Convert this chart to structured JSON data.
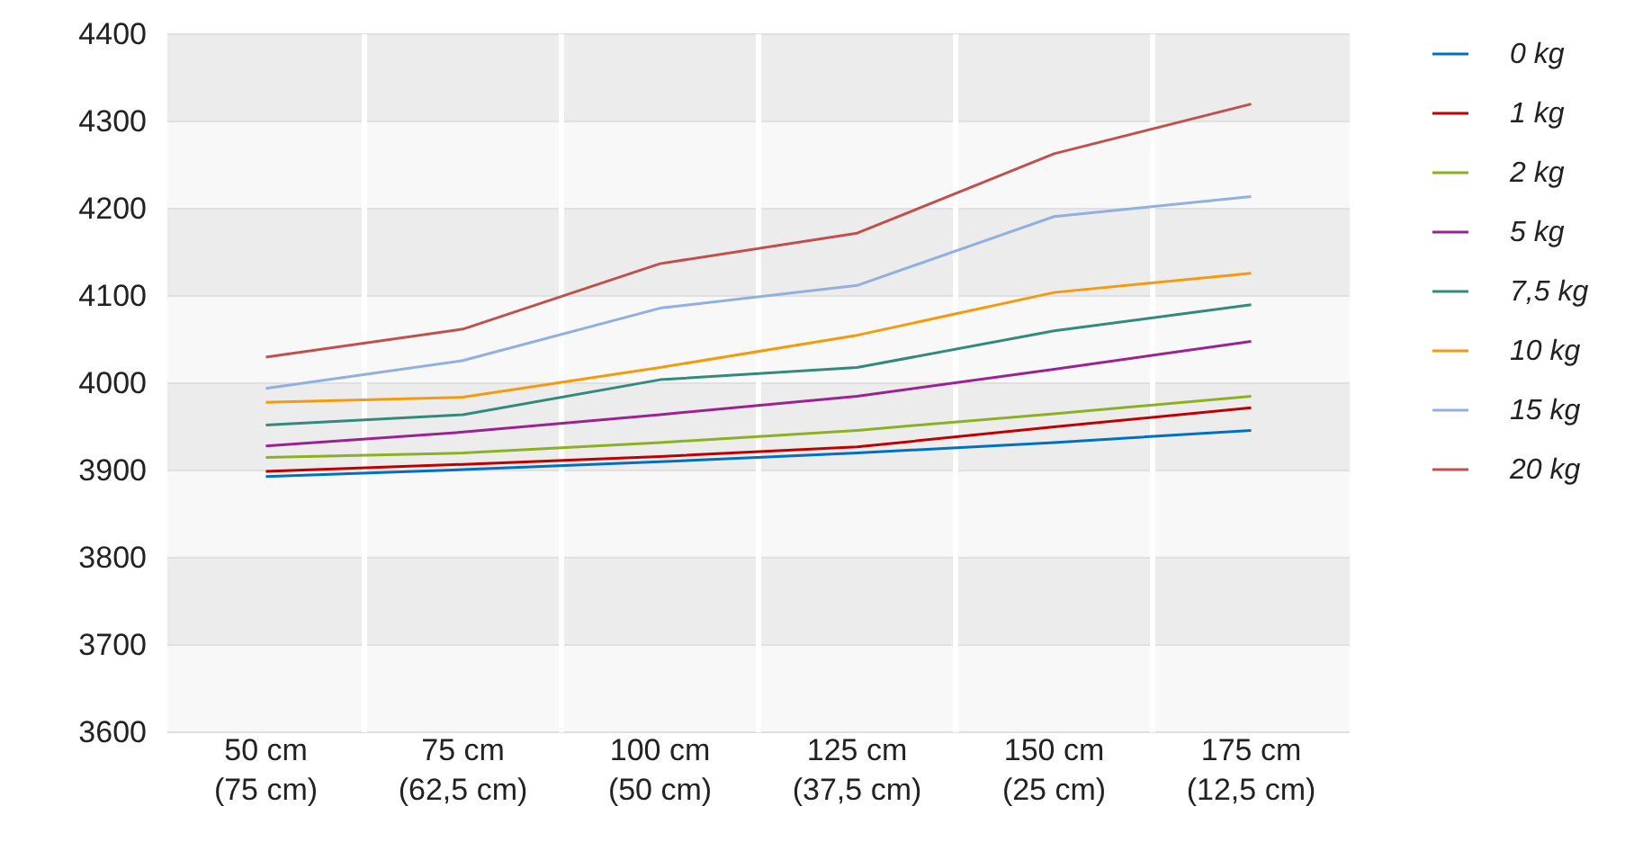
{
  "chart_data": {
    "type": "line",
    "categories": [
      "50 cm\n(75 cm)",
      "75 cm\n(62,5 cm)",
      "100 cm\n(50 cm)",
      "125 cm\n(37,5 cm)",
      "150 cm\n(25 cm)",
      "175 cm\n(12,5 cm)"
    ],
    "series": [
      {
        "name": "0 kg",
        "color": "#0070c0",
        "values": [
          3893,
          3901,
          3910,
          3920,
          3932,
          3946
        ]
      },
      {
        "name": "1 kg",
        "color": "#c00000",
        "values": [
          3899,
          3907,
          3916,
          3927,
          3950,
          3972
        ]
      },
      {
        "name": "2 kg",
        "color": "#8cb021",
        "values": [
          3915,
          3920,
          3932,
          3946,
          3965,
          3985
        ]
      },
      {
        "name": "5 kg",
        "color": "#9b2292",
        "values": [
          3928,
          3944,
          3964,
          3985,
          4016,
          4048
        ]
      },
      {
        "name": "7,5 kg",
        "color": "#318a7c",
        "values": [
          3952,
          3964,
          4004,
          4018,
          4060,
          4090
        ]
      },
      {
        "name": "10 kg",
        "color": "#f59a0c",
        "values": [
          3978,
          3984,
          4018,
          4055,
          4104,
          4126
        ]
      },
      {
        "name": "15 kg",
        "color": "#8fb0e0",
        "values": [
          3994,
          4026,
          4086,
          4112,
          4191,
          4214
        ]
      },
      {
        "name": "20 kg",
        "color": "#c0504d",
        "values": [
          4030,
          4062,
          4137,
          4172,
          4263,
          4320
        ]
      }
    ],
    "ylim": [
      3600,
      4400
    ],
    "yticks": [
      3600,
      3700,
      3800,
      3900,
      4000,
      4100,
      4200,
      4300,
      4400
    ],
    "grid": true,
    "legend": "top right",
    "marker": "none",
    "line_style": "solid"
  }
}
